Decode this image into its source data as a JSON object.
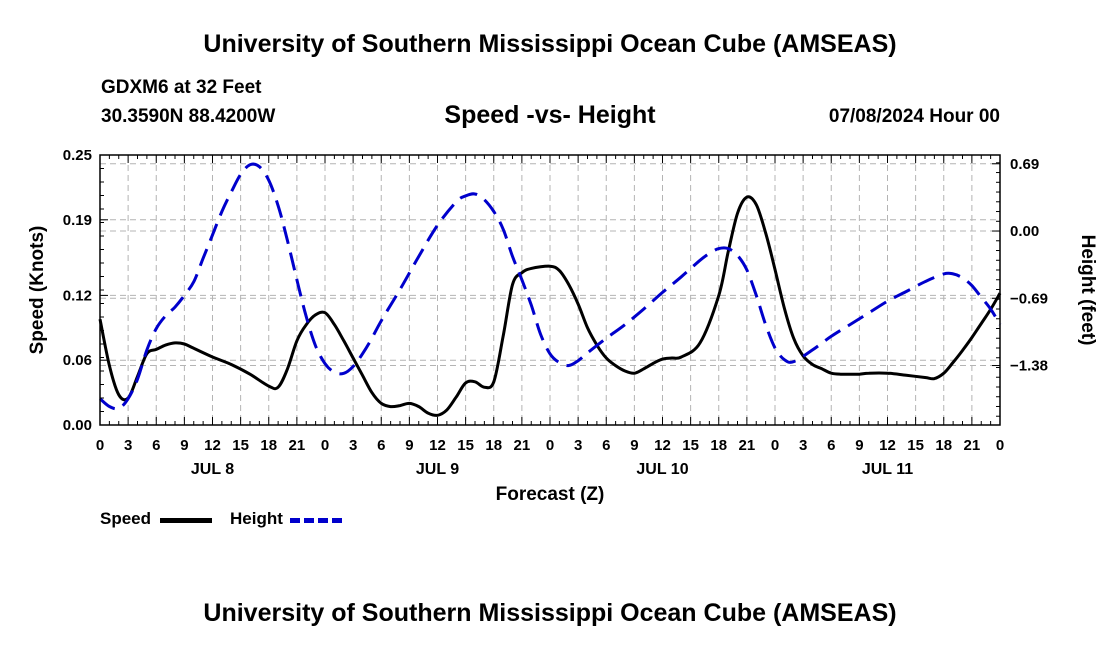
{
  "header": {
    "top_title": "University of Southern Mississippi Ocean Cube (AMSEAS)",
    "station": "GDXM6 at 32 Feet",
    "coords": "30.3590N  88.4200W",
    "chart_title": "Speed -vs- Height",
    "issued": "07/08/2024 Hour 00",
    "bottom_title": "University of Southern Mississippi Ocean Cube (AMSEAS)"
  },
  "legend": {
    "speed_label": "Speed",
    "height_label": "Height"
  },
  "colors": {
    "speed": "#000000",
    "height": "#0000cc",
    "grid": "#b4b4b4"
  },
  "chart_data": {
    "type": "line",
    "title": "Speed -vs- Height",
    "xlabel": "Forecast (Z)",
    "ylabel": "Speed (Knots)",
    "y2label": "Height (feet)",
    "xlim": [
      0,
      96
    ],
    "ylim": [
      0,
      0.25
    ],
    "y2lim": [
      -1.99,
      0.78
    ],
    "grid": true,
    "legend_position": "bottom-left",
    "x_tick_values": [
      0,
      3,
      6,
      9,
      12,
      15,
      18,
      21,
      24,
      27,
      30,
      33,
      36,
      39,
      42,
      45,
      48,
      51,
      54,
      57,
      60,
      63,
      66,
      69,
      72,
      75,
      78,
      81,
      84,
      87,
      90,
      93,
      96
    ],
    "x_tick_labels": [
      "0",
      "3",
      "6",
      "9",
      "12",
      "15",
      "18",
      "21",
      "0",
      "3",
      "6",
      "9",
      "12",
      "15",
      "18",
      "21",
      "0",
      "3",
      "6",
      "9",
      "12",
      "15",
      "18",
      "21",
      "0",
      "3",
      "6",
      "9",
      "12",
      "15",
      "18",
      "21",
      "0"
    ],
    "day_labels": [
      {
        "x": 12,
        "label": "JUL 8"
      },
      {
        "x": 36,
        "label": "JUL 9"
      },
      {
        "x": 60,
        "label": "JUL 10"
      },
      {
        "x": 84,
        "label": "JUL 11"
      }
    ],
    "y_ticks": [
      0.0,
      0.06,
      0.12,
      0.19,
      0.25
    ],
    "y_tick_labels": [
      "0.00",
      "0.06",
      "0.12",
      "0.19",
      "0.25"
    ],
    "y2_ticks": [
      0.69,
      0.0,
      -0.69,
      -1.38
    ],
    "y2_tick_labels": [
      "0.69",
      "0.00",
      "−0.69",
      "−1.38"
    ],
    "series": [
      {
        "name": "Speed",
        "axis": "left",
        "style": "solid",
        "x": [
          0,
          1,
          2,
          3,
          4,
          5,
          6,
          7,
          8,
          9,
          10,
          12,
          14,
          16,
          18,
          19,
          20,
          21,
          22,
          23,
          24,
          25,
          26,
          27,
          28,
          29,
          30,
          31,
          32,
          33,
          34,
          35,
          36,
          37,
          38,
          39,
          40,
          41,
          42,
          43,
          44,
          45,
          46,
          48,
          49,
          50,
          51,
          52,
          53,
          54,
          55,
          56,
          57,
          58,
          59,
          60,
          61,
          62,
          64,
          66,
          67,
          68,
          69,
          70,
          71,
          72,
          73,
          74,
          75,
          76,
          77,
          78,
          79,
          80,
          81,
          82,
          84,
          86,
          88,
          89,
          90,
          91,
          92,
          93,
          94,
          95,
          96
        ],
        "values": [
          0.098,
          0.055,
          0.028,
          0.025,
          0.045,
          0.066,
          0.07,
          0.074,
          0.076,
          0.075,
          0.071,
          0.063,
          0.056,
          0.047,
          0.036,
          0.035,
          0.052,
          0.078,
          0.093,
          0.102,
          0.104,
          0.093,
          0.078,
          0.062,
          0.046,
          0.03,
          0.02,
          0.017,
          0.018,
          0.02,
          0.017,
          0.011,
          0.009,
          0.014,
          0.026,
          0.039,
          0.04,
          0.035,
          0.04,
          0.082,
          0.13,
          0.141,
          0.145,
          0.147,
          0.143,
          0.13,
          0.112,
          0.09,
          0.074,
          0.062,
          0.055,
          0.05,
          0.048,
          0.052,
          0.057,
          0.061,
          0.062,
          0.063,
          0.076,
          0.12,
          0.16,
          0.196,
          0.211,
          0.204,
          0.178,
          0.144,
          0.108,
          0.08,
          0.064,
          0.056,
          0.052,
          0.048,
          0.047,
          0.047,
          0.047,
          0.048,
          0.048,
          0.046,
          0.044,
          0.043,
          0.048,
          0.058,
          0.069,
          0.081,
          0.094,
          0.107,
          0.122
        ]
      },
      {
        "name": "Height",
        "axis": "right",
        "style": "dashed",
        "x": [
          0,
          1,
          2,
          3,
          4,
          5,
          6,
          7,
          8,
          9,
          10,
          11,
          12,
          13,
          14,
          15,
          16,
          17,
          18,
          19,
          20,
          21,
          22,
          23,
          24,
          25,
          26,
          27,
          28,
          29,
          30,
          32,
          34,
          36,
          38,
          39,
          40,
          41,
          42,
          43,
          44,
          45,
          46,
          47,
          48,
          49,
          50,
          51,
          52,
          54,
          56,
          58,
          60,
          62,
          64,
          65,
          66,
          67,
          68,
          69,
          70,
          71,
          72,
          73,
          74,
          76,
          78,
          80,
          82,
          84,
          86,
          88,
          90,
          91,
          92,
          93,
          94,
          95,
          96
        ],
        "values": [
          -1.72,
          -1.8,
          -1.82,
          -1.72,
          -1.52,
          -1.22,
          -1.0,
          -0.87,
          -0.78,
          -0.66,
          -0.52,
          -0.28,
          -0.04,
          0.2,
          0.4,
          0.58,
          0.68,
          0.66,
          0.52,
          0.26,
          -0.1,
          -0.5,
          -0.88,
          -1.18,
          -1.36,
          -1.45,
          -1.46,
          -1.39,
          -1.26,
          -1.1,
          -0.92,
          -0.6,
          -0.26,
          0.06,
          0.3,
          0.36,
          0.38,
          0.32,
          0.2,
          0.02,
          -0.26,
          -0.5,
          -0.76,
          -1.06,
          -1.26,
          -1.35,
          -1.38,
          -1.33,
          -1.25,
          -1.1,
          -0.96,
          -0.8,
          -0.63,
          -0.47,
          -0.3,
          -0.23,
          -0.18,
          -0.18,
          -0.25,
          -0.4,
          -0.66,
          -0.96,
          -1.2,
          -1.32,
          -1.34,
          -1.22,
          -1.08,
          -0.96,
          -0.84,
          -0.72,
          -0.62,
          -0.52,
          -0.44,
          -0.44,
          -0.48,
          -0.56,
          -0.68,
          -0.8,
          -0.96
        ]
      }
    ]
  }
}
